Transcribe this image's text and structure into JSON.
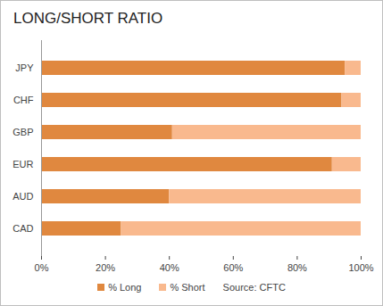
{
  "chart_data": {
    "type": "bar",
    "title": "LONG/SHORT RATIO",
    "orientation": "horizontal",
    "stacked": true,
    "categories": [
      "JPY",
      "CHF",
      "GBP",
      "EUR",
      "AUD",
      "CAD"
    ],
    "series": [
      {
        "name": "% Long",
        "color": "#E0883F",
        "values": [
          95,
          94,
          41,
          91,
          40,
          25
        ]
      },
      {
        "name": "% Short",
        "color": "#F9B98E",
        "values": [
          5,
          6,
          59,
          9,
          60,
          75
        ]
      }
    ],
    "xlim": [
      0,
      100
    ],
    "xticks": [
      {
        "value": 0,
        "label": "0%"
      },
      {
        "value": 20,
        "label": "20%"
      },
      {
        "value": 40,
        "label": "40%"
      },
      {
        "value": 60,
        "label": "60%"
      },
      {
        "value": 80,
        "label": "80%"
      },
      {
        "value": 100,
        "label": "100%"
      }
    ],
    "grid": false,
    "legend": "bottom",
    "annotations": [
      "Source: CFTC"
    ]
  }
}
